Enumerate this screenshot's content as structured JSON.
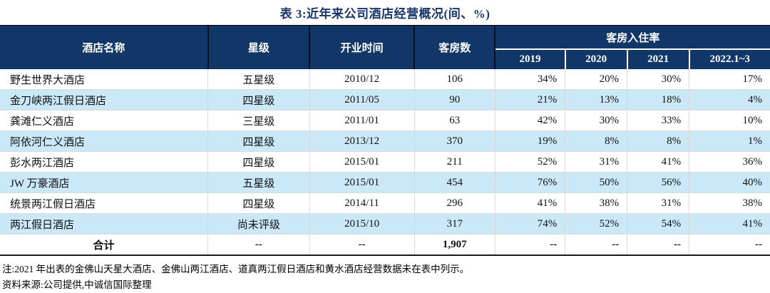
{
  "title": "表 3:近年来公司酒店经营概况(间、%)",
  "colors": {
    "header_bg": "#113768",
    "zebra_row": "#cbe8f8",
    "title_text": "#17356B",
    "grid_line": "#d9d9d9"
  },
  "table": {
    "headers": {
      "hotel": "酒店名称",
      "star": "星级",
      "open_date": "开业时间",
      "rooms": "客房数",
      "occupancy_group": "客房入住率",
      "years": [
        "2019",
        "2020",
        "2021",
        "2022.1~3"
      ]
    },
    "rows": [
      {
        "hotel": "野生世界大酒店",
        "star": "五星级",
        "open": "2010/12",
        "rooms": "106",
        "occ": [
          "34%",
          "20%",
          "30%",
          "17%"
        ]
      },
      {
        "hotel": "金刀峡两江假日酒店",
        "star": "四星级",
        "open": "2011/05",
        "rooms": "90",
        "occ": [
          "21%",
          "13%",
          "18%",
          "4%"
        ]
      },
      {
        "hotel": "龚滩仁义酒店",
        "star": "三星级",
        "open": "2011/01",
        "rooms": "63",
        "occ": [
          "42%",
          "30%",
          "33%",
          "10%"
        ]
      },
      {
        "hotel": "阿依河仁义酒店",
        "star": "四星级",
        "open": "2013/12",
        "rooms": "370",
        "occ": [
          "19%",
          "8%",
          "8%",
          "1%"
        ]
      },
      {
        "hotel": "彭水两江酒店",
        "star": "四星级",
        "open": "2015/01",
        "rooms": "211",
        "occ": [
          "52%",
          "31%",
          "41%",
          "36%"
        ]
      },
      {
        "hotel": "JW 万豪酒店",
        "star": "五星级",
        "open": "2015/01",
        "rooms": "454",
        "occ": [
          "76%",
          "50%",
          "56%",
          "40%"
        ]
      },
      {
        "hotel": "统景两江假日酒店",
        "star": "四星级",
        "open": "2014/11",
        "rooms": "296",
        "occ": [
          "41%",
          "38%",
          "31%",
          "38%"
        ]
      },
      {
        "hotel": "两江假日酒店",
        "star": "尚未评级",
        "open": "2015/10",
        "rooms": "317",
        "occ": [
          "74%",
          "52%",
          "54%",
          "41%"
        ]
      }
    ],
    "total": {
      "label": "合计",
      "star": "--",
      "open": "--",
      "rooms": "1,907",
      "occ": [
        "--",
        "--",
        "--",
        "--"
      ]
    }
  },
  "footnotes": {
    "note": "注:2021 年出表的金佛山天星大酒店、金佛山两江酒店、道真两江假日酒店和黄水酒店经营数据未在表中列示。",
    "source": "资料来源:公司提供,中诚信国际整理"
  }
}
